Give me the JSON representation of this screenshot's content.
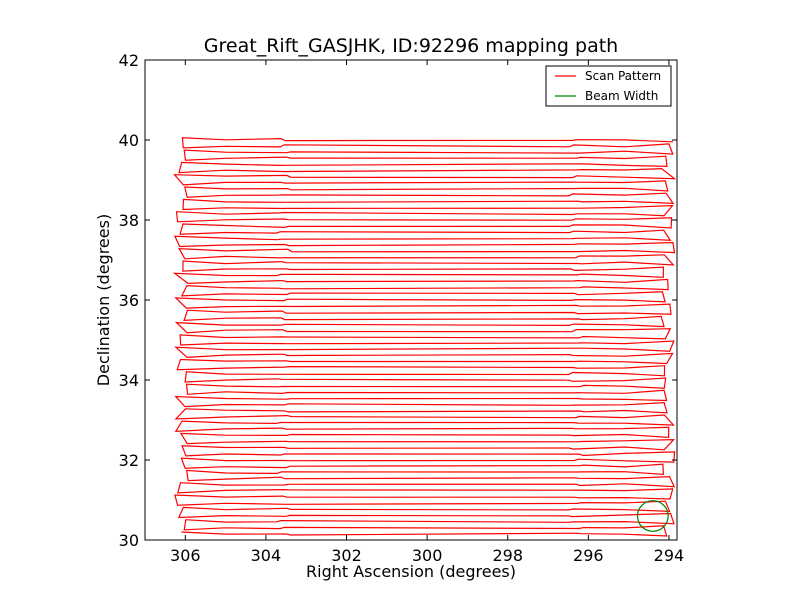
{
  "chart_data": {
    "type": "line",
    "title": "Great_Rift_GASJHK, ID:92296 mapping path",
    "xlabel": "Right Ascension (degrees)",
    "ylabel": "Declination (degrees)",
    "xlim": [
      307.0,
      293.8
    ],
    "ylim": [
      30,
      42
    ],
    "x_ticks": [
      306,
      304,
      302,
      300,
      298,
      296,
      294
    ],
    "y_ticks": [
      30,
      32,
      34,
      36,
      38,
      40,
      42
    ],
    "grid": false,
    "legend": {
      "placement": "top-right",
      "entries": [
        "Scan Pattern",
        "Beam Width"
      ]
    },
    "series": [
      {
        "name": "Scan Pattern",
        "color": "#ff0000",
        "kind": "raster-scan",
        "dec_start": 30.15,
        "dec_end": 40.0,
        "row_spacing": 0.154,
        "ra_left": 306.1,
        "ra_right": 294.0
      },
      {
        "name": "Beam Width",
        "color": "#008000",
        "kind": "circle",
        "center": [
          294.4,
          30.6
        ],
        "radius_deg": 0.38
      }
    ]
  }
}
